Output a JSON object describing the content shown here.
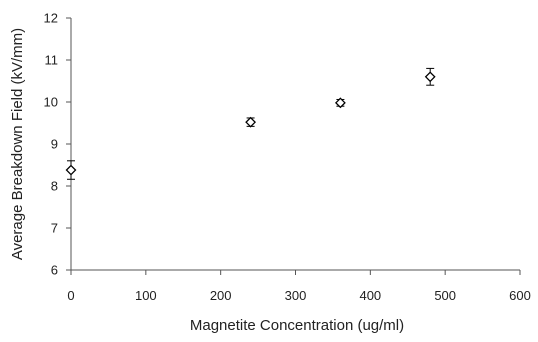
{
  "chart_data": {
    "type": "scatter",
    "title": "",
    "xlabel": "Magnetite Concentration (ug/ml)",
    "ylabel": "Average Breakdown Field (kV/mm)",
    "xlim": [
      0,
      600
    ],
    "ylim": [
      6,
      12
    ],
    "x_ticks": [
      0,
      100,
      200,
      300,
      400,
      500,
      600
    ],
    "y_ticks": [
      6,
      7,
      8,
      9,
      10,
      11,
      12
    ],
    "grid": false,
    "legend": "none",
    "marker": "diamond",
    "colors": {
      "marker": "#000000",
      "axis": "#555555",
      "text": "#222222"
    },
    "points": [
      {
        "x": 0,
        "y": 8.38,
        "err": 0.22
      },
      {
        "x": 240,
        "y": 9.52,
        "err": 0.1
      },
      {
        "x": 360,
        "y": 9.98,
        "err": 0.08
      },
      {
        "x": 480,
        "y": 10.6,
        "err": 0.2
      }
    ]
  }
}
